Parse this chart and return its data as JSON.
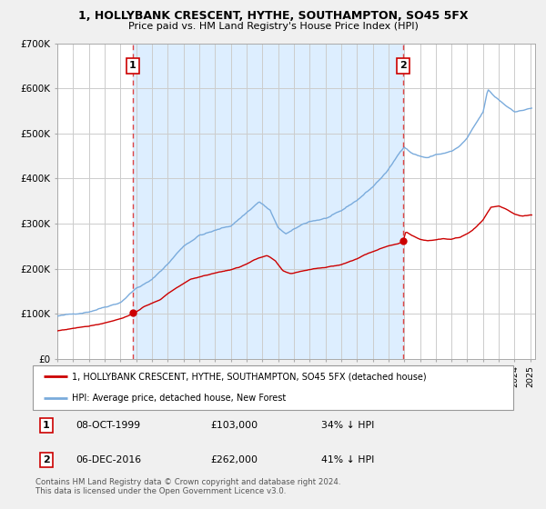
{
  "title": "1, HOLLYBANK CRESCENT, HYTHE, SOUTHAMPTON, SO45 5FX",
  "subtitle": "Price paid vs. HM Land Registry's House Price Index (HPI)",
  "legend_line1": "1, HOLLYBANK CRESCENT, HYTHE, SOUTHAMPTON, SO45 5FX (detached house)",
  "legend_line2": "HPI: Average price, detached house, New Forest",
  "annotation1": {
    "label": "1",
    "date_str": "08-OCT-1999",
    "price_str": "£103,000",
    "hpi_str": "34% ↓ HPI"
  },
  "annotation2": {
    "label": "2",
    "date_str": "06-DEC-2016",
    "price_str": "£262,000",
    "hpi_str": "41% ↓ HPI"
  },
  "sale1_year": 1999.77,
  "sale1_price": 103000,
  "sale2_year": 2016.92,
  "sale2_price": 262000,
  "hpi_color": "#7aabdc",
  "property_color": "#cc0000",
  "vline_color": "#dd4444",
  "bg_span_color": "#ddeeff",
  "plot_bg": "#ffffff",
  "fig_bg": "#f0f0f0",
  "grid_color": "#cccccc",
  "ylim_max": 700000,
  "xlim_min": 1995,
  "xlim_max": 2025.3,
  "note_line1": "Contains HM Land Registry data © Crown copyright and database right 2024.",
  "note_line2": "This data is licensed under the Open Government Licence v3.0."
}
